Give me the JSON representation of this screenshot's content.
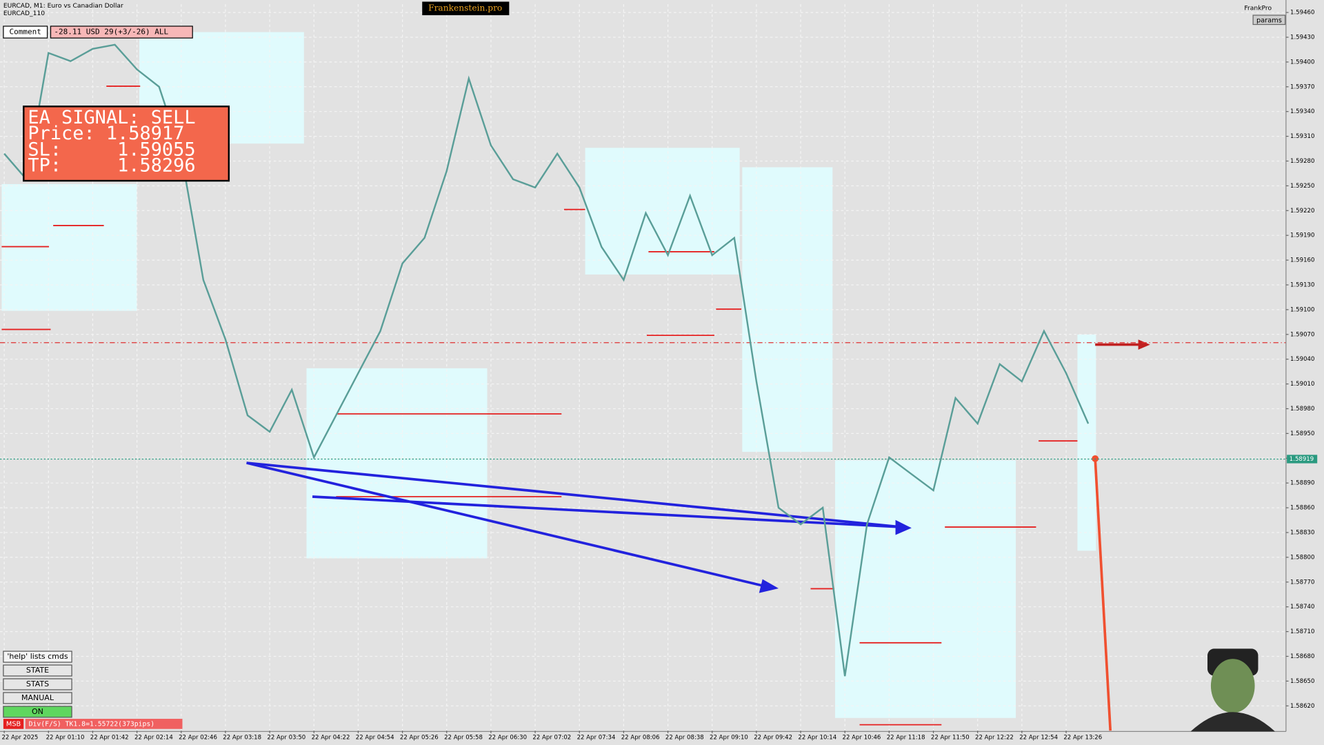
{
  "ui": {
    "symbol": "EURCAD, M1:  Euro vs Canadian Dollar",
    "sub": "EURCAD_110",
    "brand": "Frankenstein.pro",
    "comment_label": "Comment",
    "comment_value": "-28.11 USD 29(+3/-26) ALL",
    "corner": "FrankPro",
    "params": "params",
    "signal": [
      "EA SIGNAL: SELL",
      "Price: 1.58917",
      "SL:     1.59055",
      "TP:     1.58296"
    ],
    "buttons": [
      "'help' lists cmds",
      "STATE",
      "STATS",
      "MANUAL",
      "ON"
    ],
    "status_tag": "MSB",
    "status_text": "Div(F/S) TK1.8=1.55722(373pips)"
  },
  "chart_data": {
    "type": "line",
    "color": "#5a9e98",
    "categories": [
      "22 Apr 2025",
      null,
      "22 Apr 01:10",
      null,
      "22 Apr 01:42",
      null,
      "22 Apr 02:14",
      null,
      "22 Apr 02:46",
      null,
      "22 Apr 03:18",
      null,
      "22 Apr 03:50",
      null,
      "22 Apr 04:22",
      null,
      "22 Apr 04:54",
      null,
      "22 Apr 05:26",
      null,
      "22 Apr 05:58",
      null,
      "22 Apr 06:30",
      null,
      "22 Apr 07:02",
      null,
      "22 Apr 07:34",
      null,
      "22 Apr 08:06",
      null,
      "22 Apr 08:38",
      null,
      "22 Apr 09:10",
      null,
      "22 Apr 09:42",
      null,
      "22 Apr 10:14",
      null,
      "22 Apr 10:46",
      null,
      "22 Apr 11:18",
      null,
      "22 Apr 11:50",
      null,
      "22 Apr 12:22",
      null,
      "22 Apr 12:54",
      null,
      "22 Apr 13:26",
      null
    ],
    "values": [
      1.59289,
      1.59258,
      1.59411,
      1.59401,
      1.59416,
      1.59421,
      1.59391,
      1.5937,
      1.59289,
      1.59136,
      1.59064,
      1.58972,
      1.58952,
      1.59003,
      1.58921,
      1.58972,
      1.59023,
      1.59074,
      1.59156,
      1.59187,
      1.59268,
      1.5938,
      1.59299,
      1.59258,
      1.59248,
      1.59289,
      1.59248,
      1.59176,
      1.59136,
      1.59217,
      1.59166,
      1.59238,
      1.59166,
      1.59187,
      1.59013,
      1.5886,
      1.5884,
      1.5886,
      1.58656,
      1.5884,
      1.58921,
      1.58901,
      1.58881,
      1.58993,
      1.58962,
      1.59034,
      1.59013,
      1.59074,
      1.59023,
      1.58962
    ],
    "ylim": [
      1.5859,
      1.5947
    ],
    "yticks": [
      {
        "value": 1.5946,
        "label": "1.59460"
      },
      {
        "value": 1.5943,
        "label": "1.59430"
      },
      {
        "value": 1.594,
        "label": "1.59400"
      },
      {
        "value": 1.5937,
        "label": "1.59370"
      },
      {
        "value": 1.5934,
        "label": "1.59340"
      },
      {
        "value": 1.5931,
        "label": "1.59310"
      },
      {
        "value": 1.5928,
        "label": "1.59280"
      },
      {
        "value": 1.5925,
        "label": "1.59250"
      },
      {
        "value": 1.5922,
        "label": "1.59220"
      },
      {
        "value": 1.5919,
        "label": "1.59190"
      },
      {
        "value": 1.5916,
        "label": "1.59160"
      },
      {
        "value": 1.5913,
        "label": "1.59130"
      },
      {
        "value": 1.591,
        "label": "1.59100"
      },
      {
        "value": 1.5907,
        "label": "1.59070"
      },
      {
        "value": 1.5904,
        "label": "1.59040"
      },
      {
        "value": 1.5901,
        "label": "1.59010"
      },
      {
        "value": 1.5898,
        "label": "1.58980"
      },
      {
        "value": 1.5895,
        "label": "1.58950"
      },
      {
        "value": 1.5892,
        "label": "1.58920"
      },
      {
        "value": 1.5889,
        "label": "1.58890"
      },
      {
        "value": 1.5886,
        "label": "1.58860"
      },
      {
        "value": 1.5883,
        "label": "1.58830"
      },
      {
        "value": 1.588,
        "label": "1.58800"
      },
      {
        "value": 1.5877,
        "label": "1.58770"
      },
      {
        "value": 1.5874,
        "label": "1.58740"
      },
      {
        "value": 1.5871,
        "label": "1.58710"
      },
      {
        "value": 1.5868,
        "label": "1.58680"
      },
      {
        "value": 1.5865,
        "label": "1.58650"
      },
      {
        "value": 1.5862,
        "label": "1.58620"
      }
    ],
    "grid": true,
    "level_line": 1.5906,
    "current_price": {
      "value": 1.58919,
      "label": "1.58919"
    }
  }
}
